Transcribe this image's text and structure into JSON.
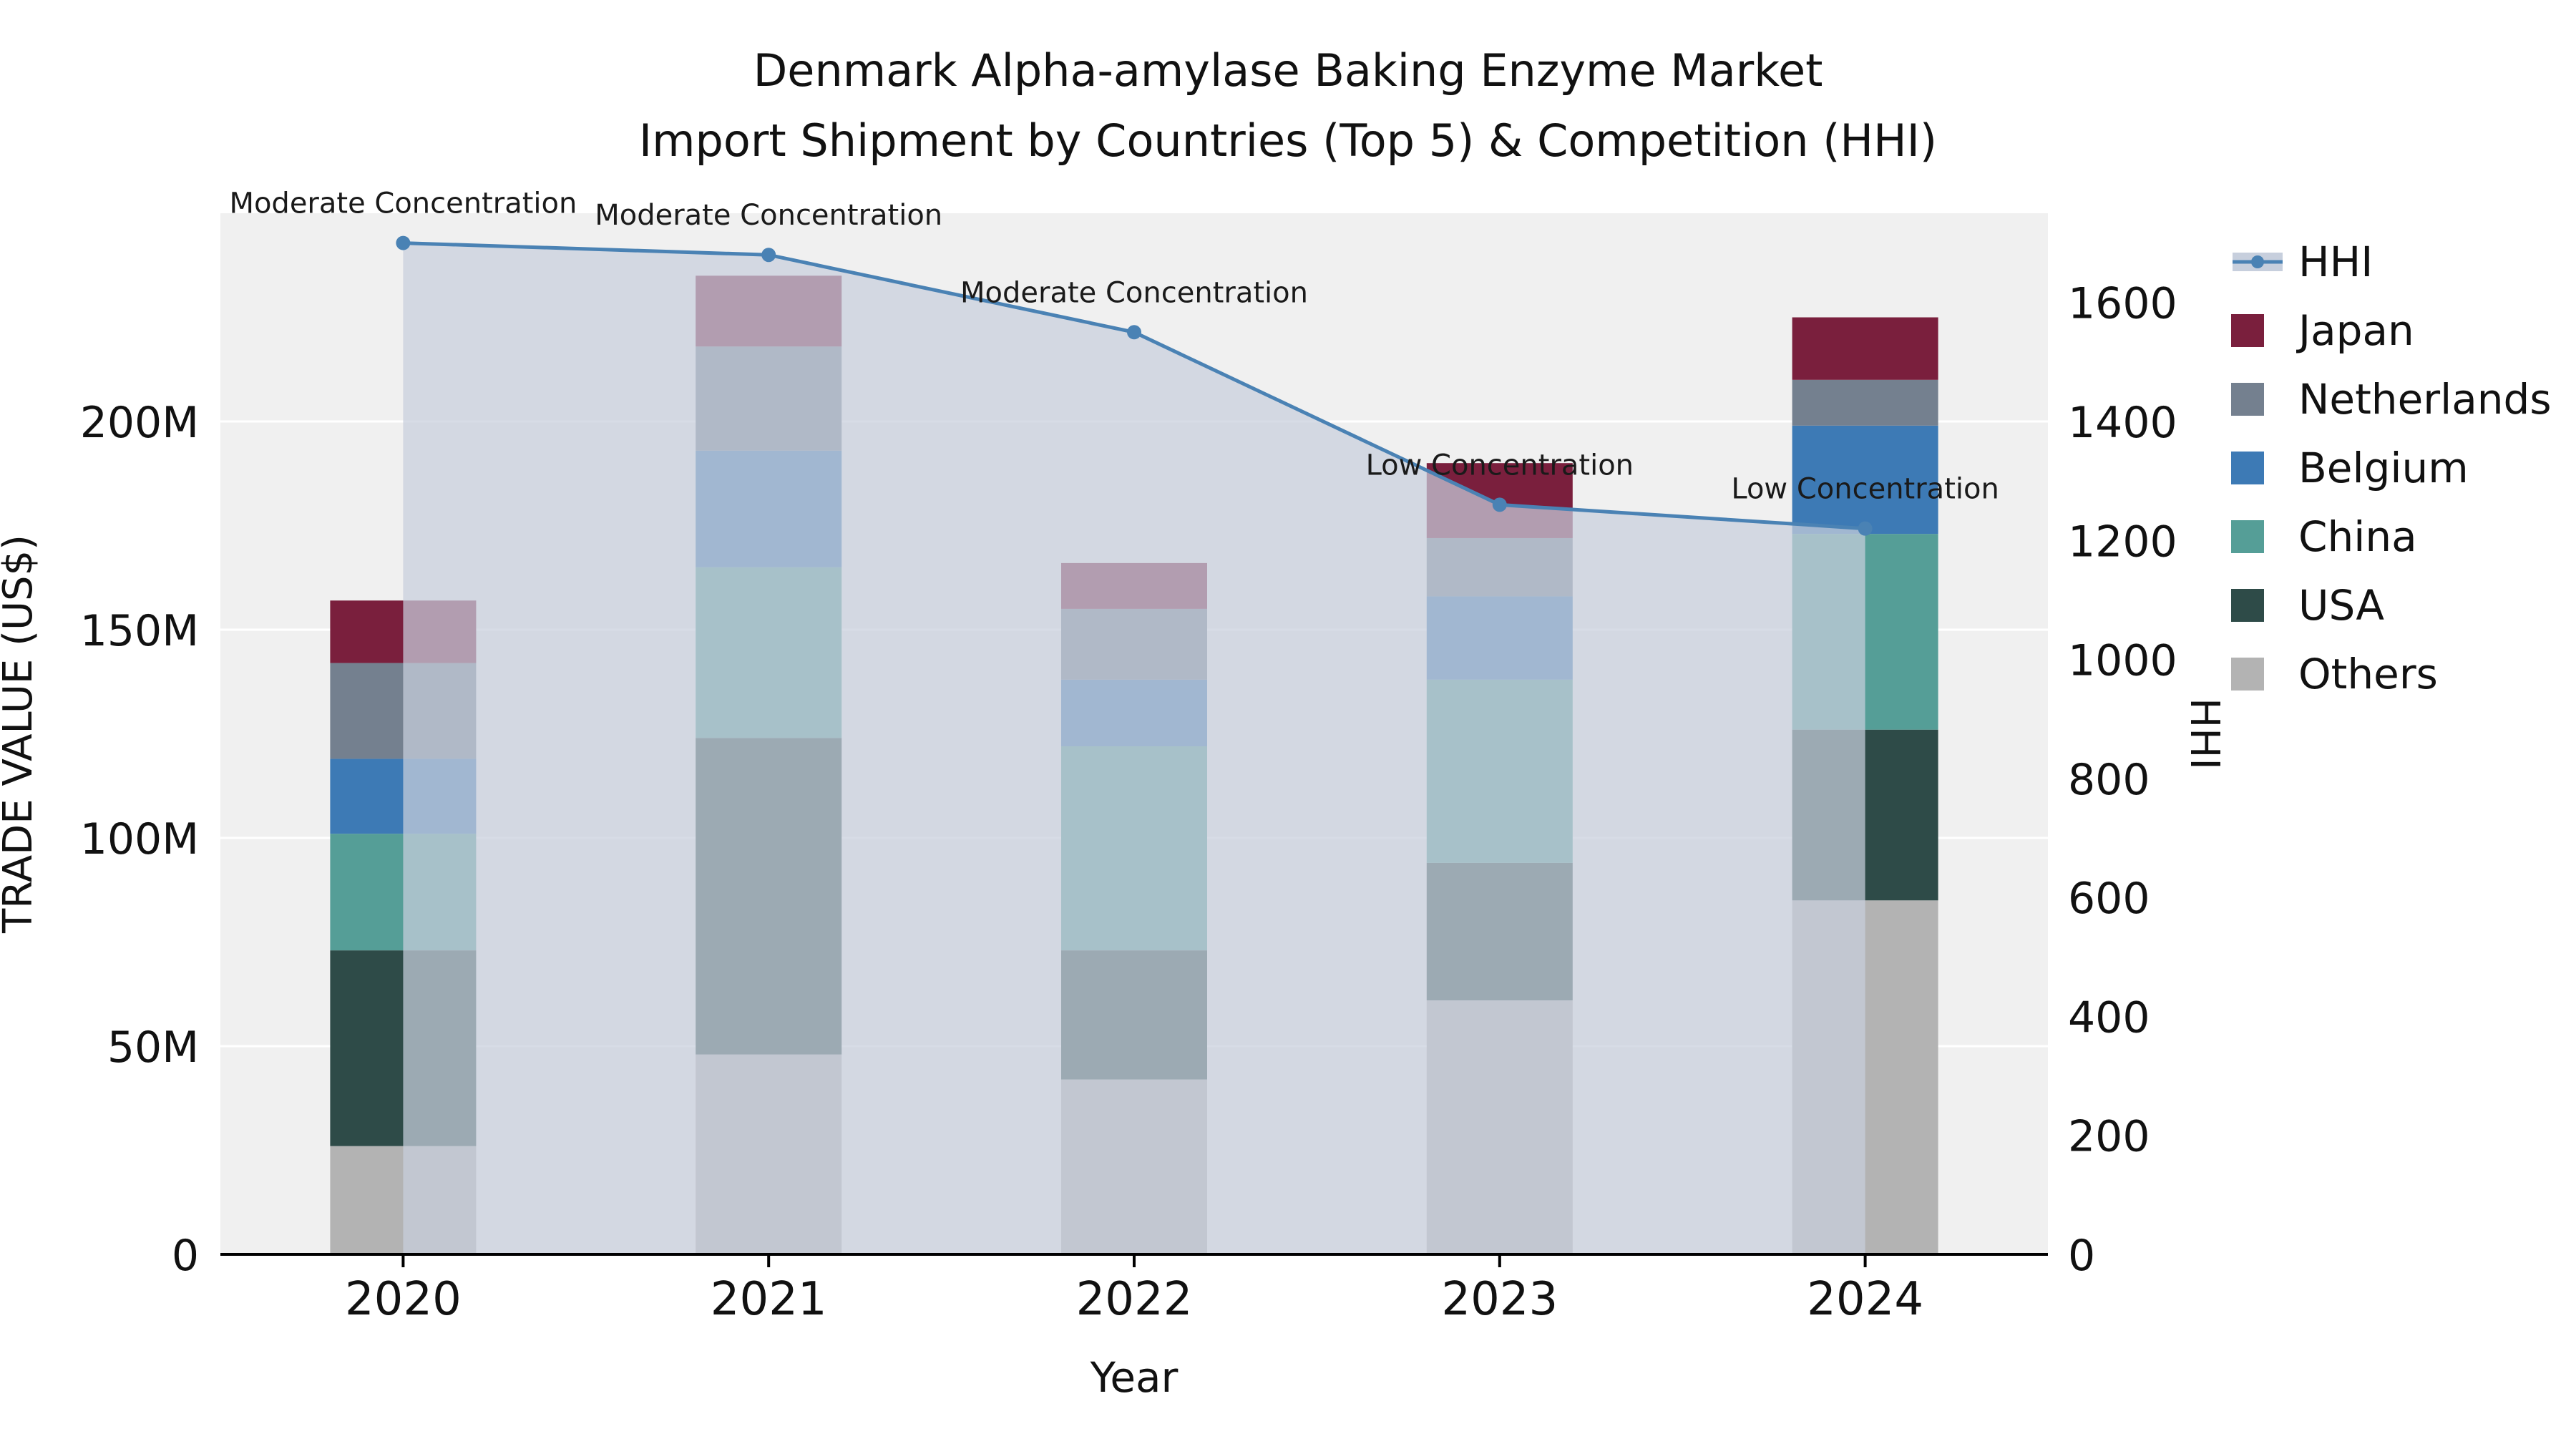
{
  "chart_data": {
    "type": "bar",
    "subtype": "stacked-bar-with-line-overlay",
    "title": "Denmark Alpha-amylase Baking Enzyme Market",
    "subtitle": "Import Shipment by Countries (Top 5) & Competition (HHI)",
    "xlabel": "Year",
    "ylabel_left": "TRADE VALUE (US$)",
    "ylabel_right": "HHI",
    "unit": "US$ millions",
    "categories": [
      "2020",
      "2021",
      "2022",
      "2023",
      "2024"
    ],
    "series": [
      {
        "name": "Others",
        "color": "#b3b3b3",
        "values": [
          26,
          48,
          42,
          61,
          85
        ]
      },
      {
        "name": "USA",
        "color": "#2e4b48",
        "values": [
          47,
          76,
          31,
          33,
          41
        ]
      },
      {
        "name": "China",
        "color": "#559e97",
        "values": [
          28,
          41,
          49,
          44,
          47
        ]
      },
      {
        "name": "Belgium",
        "color": "#3d7ab5",
        "values": [
          18,
          28,
          16,
          20,
          26
        ]
      },
      {
        "name": "Netherlands",
        "color": "#74808f",
        "values": [
          23,
          25,
          17,
          14,
          11
        ]
      },
      {
        "name": "Japan",
        "color": "#7a1f3d",
        "values": [
          15,
          17,
          11,
          18,
          15
        ]
      }
    ],
    "line_overlay": {
      "name": "HHI",
      "axis": "right",
      "color": "#4a82b4",
      "area_fill": "rgba(199,207,221,0.72)",
      "values": [
        1700,
        1680,
        1550,
        1260,
        1220
      ]
    },
    "annotations": [
      "Moderate Concentration",
      "Moderate Concentration",
      "Moderate Concentration",
      "Low Concentration",
      "Low Concentration"
    ],
    "y_left": {
      "max": 250,
      "ticks": [
        {
          "v": 0,
          "label": "0"
        },
        {
          "v": 50,
          "label": "50M"
        },
        {
          "v": 100,
          "label": "100M"
        },
        {
          "v": 150,
          "label": "150M"
        },
        {
          "v": 200,
          "label": "200M"
        }
      ]
    },
    "y_right": {
      "max": 1750,
      "ticks": [
        0,
        200,
        400,
        600,
        800,
        1000,
        1200,
        1400,
        1600
      ]
    },
    "legend": {
      "order": [
        "HHI",
        "Japan",
        "Netherlands",
        "Belgium",
        "China",
        "USA",
        "Others"
      ]
    },
    "plot_bg": "#f0f0f0",
    "grid_color": "#ffffff",
    "text_color": "#111111"
  }
}
